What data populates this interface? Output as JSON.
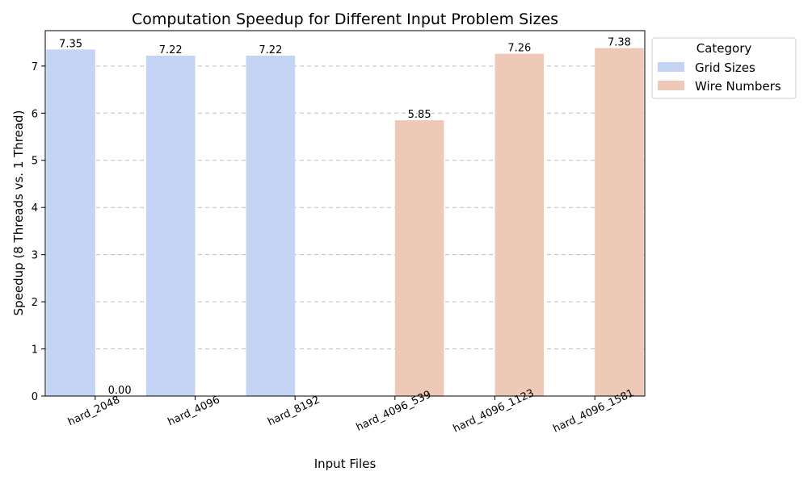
{
  "chart_data": {
    "type": "bar",
    "title": "Computation Speedup for Different Input Problem Sizes",
    "xlabel": "Input Files",
    "ylabel": "Speedup (8 Threads vs. 1 Thread)",
    "categories": [
      "hard_2048",
      "hard_4096",
      "hard_8192",
      "hard_4096_539",
      "hard_4096_1123",
      "hard_4096_1581"
    ],
    "series": [
      {
        "name": "Grid Sizes",
        "color": "#c4d4f5",
        "values": [
          7.35,
          7.22,
          7.22,
          null,
          null,
          null
        ]
      },
      {
        "name": "Wire Numbers",
        "color": "#eec9b8",
        "values": [
          0.0,
          null,
          null,
          5.85,
          7.26,
          7.38
        ]
      }
    ],
    "data_labels": [
      {
        "category": "hard_2048",
        "series": "Grid Sizes",
        "text": "7.35"
      },
      {
        "category": "hard_2048",
        "series": "Wire Numbers",
        "text": "0.00"
      },
      {
        "category": "hard_4096",
        "series": "Grid Sizes",
        "text": "7.22"
      },
      {
        "category": "hard_8192",
        "series": "Grid Sizes",
        "text": "7.22"
      },
      {
        "category": "hard_4096_539",
        "series": "Wire Numbers",
        "text": "5.85"
      },
      {
        "category": "hard_4096_1123",
        "series": "Wire Numbers",
        "text": "7.26"
      },
      {
        "category": "hard_4096_1581",
        "series": "Wire Numbers",
        "text": "7.38"
      }
    ],
    "yticks": [
      0,
      1,
      2,
      3,
      4,
      5,
      6,
      7
    ],
    "ylim": [
      0,
      7.75
    ],
    "grid": "y-dashed",
    "legend": {
      "title": "Category",
      "placement": "outside-top-right"
    }
  }
}
